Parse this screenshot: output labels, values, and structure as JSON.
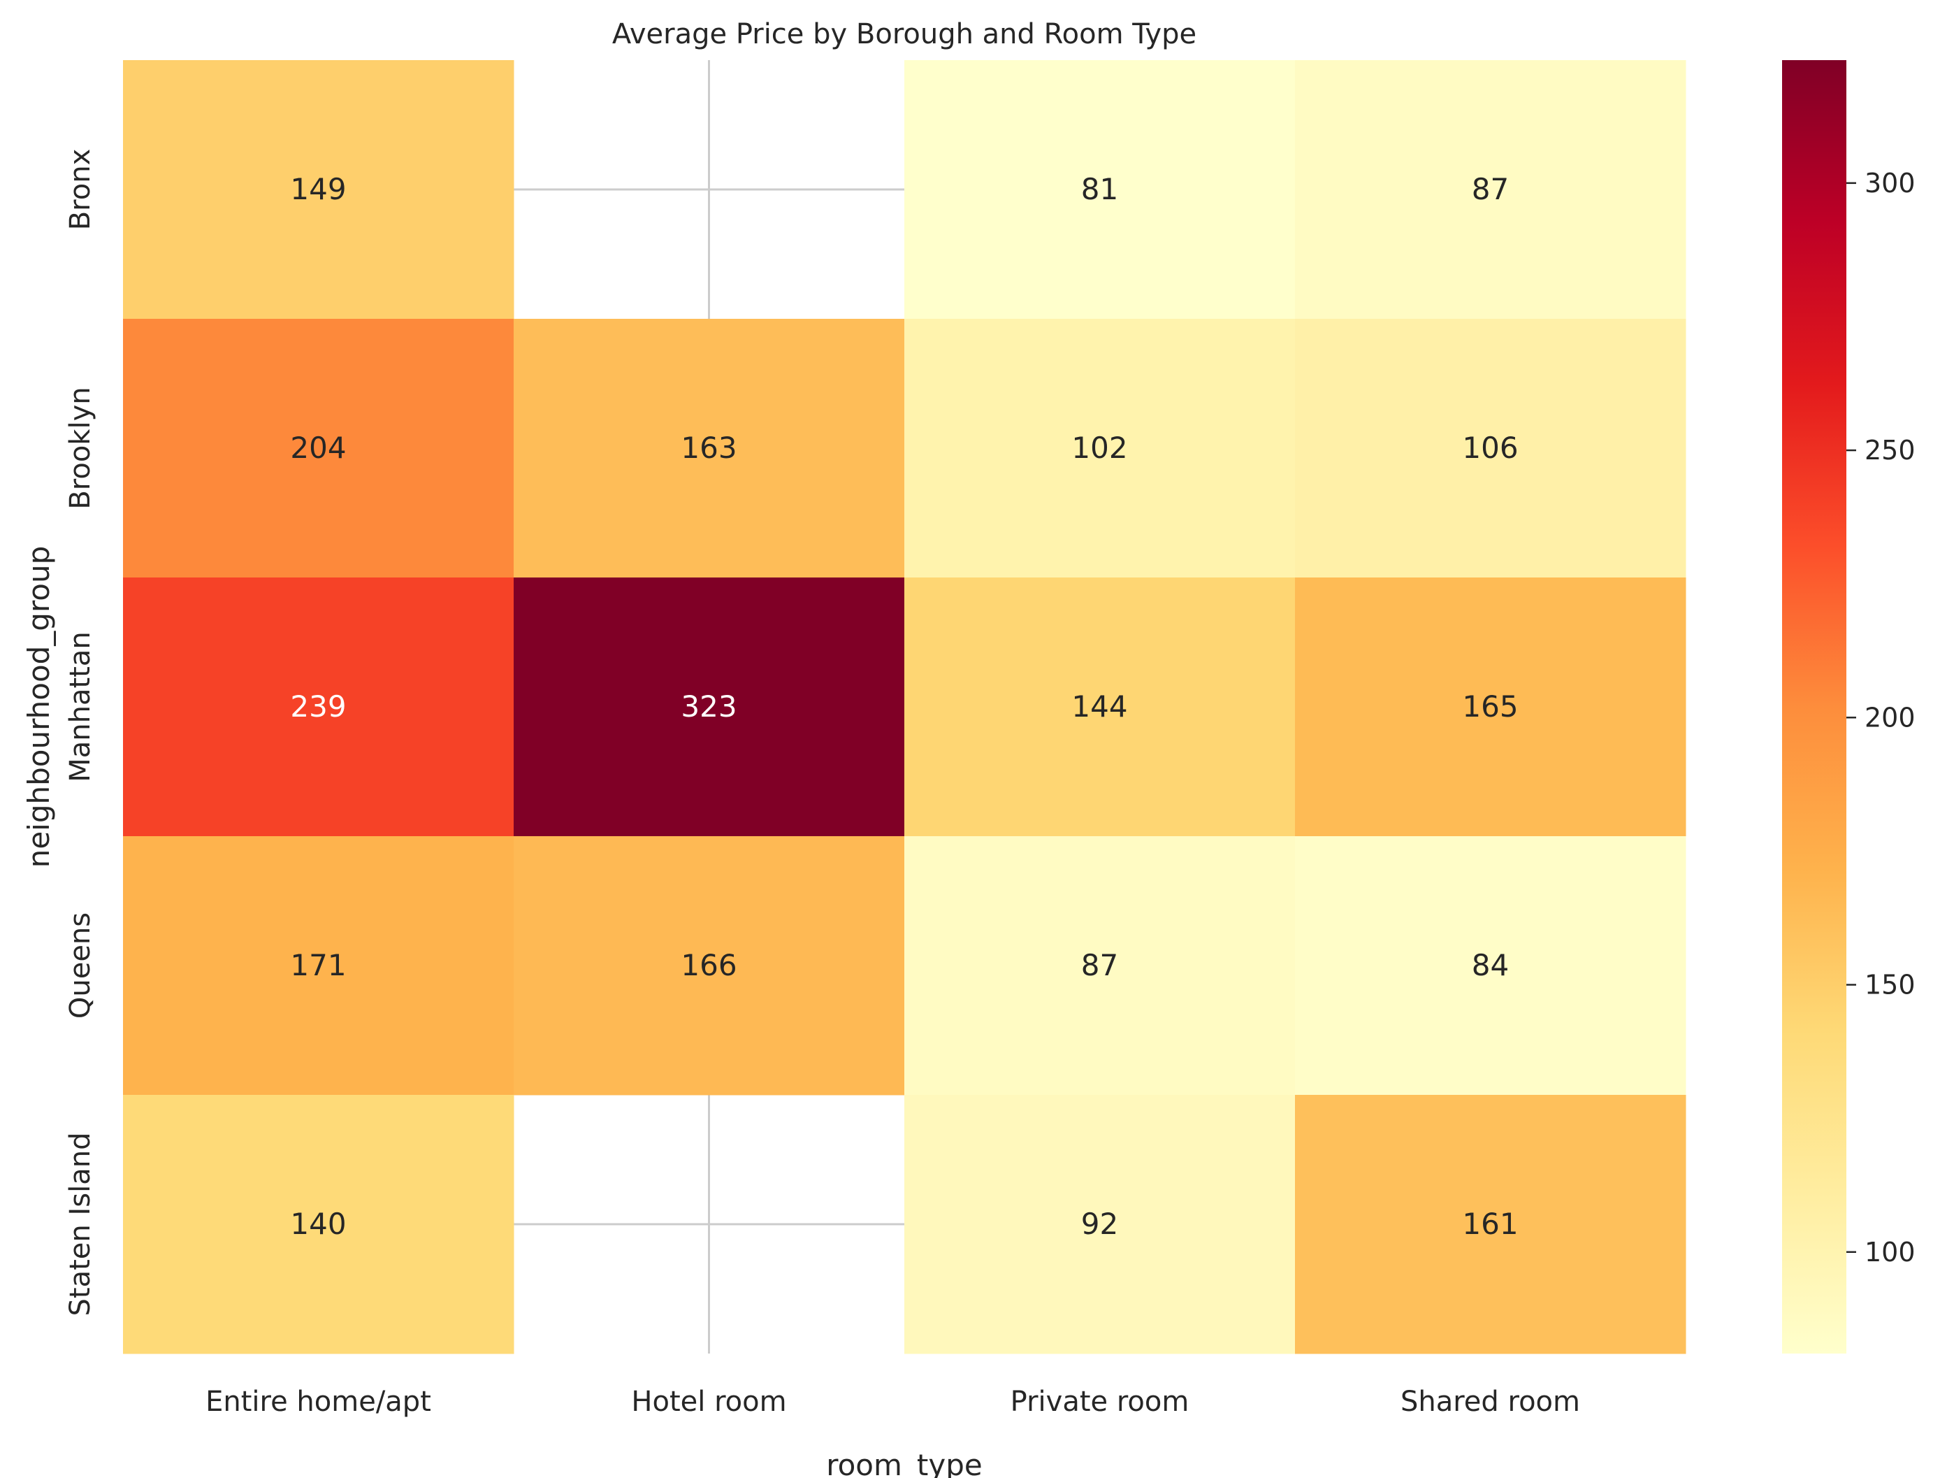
{
  "chart_data": {
    "type": "heatmap",
    "title": "Average Price by Borough and Room Type",
    "xlabel": "room_type",
    "ylabel": "neighbourhood_group",
    "x_categories": [
      "Entire home/apt",
      "Hotel room",
      "Private room",
      "Shared room"
    ],
    "y_categories": [
      "Bronx",
      "Brooklyn",
      "Manhattan",
      "Queens",
      "Staten Island"
    ],
    "values": [
      [
        149,
        null,
        81,
        87
      ],
      [
        204,
        163,
        102,
        106
      ],
      [
        239,
        323,
        144,
        165
      ],
      [
        171,
        166,
        87,
        84
      ],
      [
        140,
        null,
        92,
        161
      ]
    ],
    "colormap": "YlOrRd",
    "color_range": [
      81,
      323
    ],
    "colorbar_ticks": [
      100,
      150,
      200,
      250,
      300
    ],
    "annotations": true,
    "grid": true
  }
}
